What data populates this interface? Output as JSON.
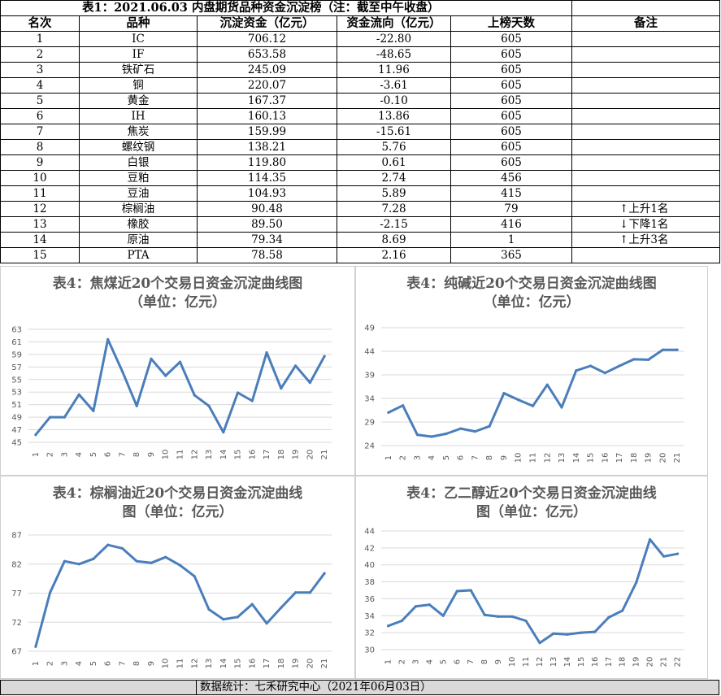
{
  "table": {
    "title": "表1：2021.06.03 内盘期货品种资金沉淀榜（注：截至中午收盘）",
    "headers": [
      "名次",
      "品种",
      "沉淀资金（亿元）",
      "资金流向（亿元）",
      "上榜天数",
      "备注"
    ],
    "rows": [
      {
        "rank": "1",
        "name": "IC",
        "fund": "706.12",
        "flow": "-22.80",
        "days": "605",
        "note": ""
      },
      {
        "rank": "2",
        "name": "IF",
        "fund": "653.58",
        "flow": "-48.65",
        "days": "605",
        "note": ""
      },
      {
        "rank": "3",
        "name": "铁矿石",
        "fund": "245.09",
        "flow": "11.96",
        "days": "605",
        "note": ""
      },
      {
        "rank": "4",
        "name": "铜",
        "fund": "220.07",
        "flow": "-3.61",
        "days": "605",
        "note": ""
      },
      {
        "rank": "5",
        "name": "黄金",
        "fund": "167.37",
        "flow": "-0.10",
        "days": "605",
        "note": ""
      },
      {
        "rank": "6",
        "name": "IH",
        "fund": "160.13",
        "flow": "13.86",
        "days": "605",
        "note": ""
      },
      {
        "rank": "7",
        "name": "焦炭",
        "fund": "159.99",
        "flow": "-15.61",
        "days": "605",
        "note": ""
      },
      {
        "rank": "8",
        "name": "螺纹钢",
        "fund": "138.21",
        "flow": "5.76",
        "days": "605",
        "note": ""
      },
      {
        "rank": "9",
        "name": "白银",
        "fund": "119.80",
        "flow": "0.61",
        "days": "605",
        "note": ""
      },
      {
        "rank": "10",
        "name": "豆粕",
        "fund": "114.35",
        "flow": "2.74",
        "days": "456",
        "note": ""
      },
      {
        "rank": "11",
        "name": "豆油",
        "fund": "104.93",
        "flow": "5.89",
        "days": "415",
        "note": ""
      },
      {
        "rank": "12",
        "name": "棕榈油",
        "fund": "90.48",
        "flow": "7.28",
        "days": "79",
        "note": "上升1名",
        "arrow": "↑"
      },
      {
        "rank": "13",
        "name": "橡胶",
        "fund": "89.50",
        "flow": "-2.15",
        "days": "416",
        "note": "下降1名",
        "arrow": "↓"
      },
      {
        "rank": "14",
        "name": "原油",
        "fund": "79.34",
        "flow": "8.69",
        "days": "1",
        "note": "上升3名",
        "arrow": "↑"
      },
      {
        "rank": "15",
        "name": "PTA",
        "fund": "78.58",
        "flow": "2.16",
        "days": "365",
        "note": ""
      }
    ]
  },
  "chart_data": [
    {
      "type": "line",
      "title": "表4：焦煤近20个交易日资金沉淀曲线图（单位：亿元）",
      "title_lines": [
        "表4：焦煤近20个交易日资金沉淀曲线图",
        "（单位：亿元）"
      ],
      "x": [
        "1",
        "2",
        "3",
        "4",
        "5",
        "6",
        "7",
        "8",
        "9",
        "10",
        "11",
        "12",
        "13",
        "14",
        "15",
        "16",
        "17",
        "18",
        "19",
        "20",
        "21"
      ],
      "values": [
        46.2,
        49.0,
        49.0,
        52.6,
        50.0,
        61.4,
        56.3,
        50.8,
        58.3,
        55.6,
        57.8,
        52.5,
        50.8,
        46.6,
        52.9,
        51.6,
        59.3,
        53.6,
        57.2,
        54.5,
        58.7
      ],
      "yticks": [
        45,
        47,
        49,
        51,
        53,
        55,
        57,
        59,
        61,
        63
      ],
      "ylim": [
        45,
        63
      ],
      "color": "#4a7ebb",
      "grid": true
    },
    {
      "type": "line",
      "title": "表4：纯碱近20个交易日资金沉淀曲线图（单位：亿元）",
      "title_lines": [
        "表4：纯碱近20个交易日资金沉淀曲线图",
        "（单位：亿元）"
      ],
      "x": [
        "1",
        "2",
        "3",
        "4",
        "5",
        "6",
        "7",
        "8",
        "9",
        "10",
        "11",
        "12",
        "13",
        "14",
        "15",
        "16",
        "17",
        "18",
        "19",
        "20",
        "21"
      ],
      "values": [
        31.0,
        32.5,
        26.3,
        25.9,
        26.5,
        27.6,
        27.0,
        28.1,
        35.1,
        33.7,
        32.4,
        36.9,
        32.1,
        39.9,
        40.9,
        39.4,
        40.9,
        42.3,
        42.2,
        44.3,
        44.3
      ],
      "yticks": [
        24,
        29,
        34,
        39,
        44,
        49
      ],
      "ylim": [
        24,
        49
      ],
      "color": "#4a7ebb",
      "grid": true
    },
    {
      "type": "line",
      "title": "表4：棕榈油近20个交易日资金沉淀曲线图（单位：亿元）",
      "title_lines": [
        "表4：棕榈油近20个交易日资金沉淀曲线",
        "图（单位：亿元）"
      ],
      "x": [
        "1",
        "2",
        "3",
        "4",
        "5",
        "6",
        "7",
        "8",
        "9",
        "10",
        "11",
        "12",
        "13",
        "14",
        "15",
        "16",
        "17",
        "18",
        "19",
        "20",
        "21"
      ],
      "values": [
        67.8,
        77.1,
        82.5,
        82.0,
        82.9,
        85.3,
        84.7,
        82.5,
        82.2,
        83.2,
        81.8,
        79.9,
        74.2,
        72.5,
        72.9,
        75.1,
        71.8,
        74.5,
        77.1,
        77.1,
        80.4
      ],
      "yticks": [
        67,
        72,
        77,
        82,
        87
      ],
      "ylim": [
        67,
        87
      ],
      "color": "#4a7ebb",
      "grid": true
    },
    {
      "type": "line",
      "title": "表4：乙二醇近20个交易日资金沉淀曲线图（单位：亿元）",
      "title_lines": [
        "表4：乙二醇近20个交易日资金沉淀曲线",
        "图（单位：亿元）"
      ],
      "x": [
        "1",
        "2",
        "3",
        "4",
        "5",
        "6",
        "7",
        "8",
        "9",
        "10",
        "11",
        "12",
        "13",
        "14",
        "15",
        "16",
        "17",
        "18",
        "19",
        "20",
        "21",
        "22"
      ],
      "values": [
        32.8,
        33.4,
        35.1,
        35.3,
        34.0,
        36.9,
        37.0,
        34.1,
        33.9,
        33.9,
        33.4,
        30.8,
        31.9,
        31.8,
        32.0,
        32.1,
        33.8,
        34.6,
        37.9,
        43.0,
        41.0,
        41.3
      ],
      "yticks": [
        30,
        32,
        34,
        36,
        38,
        40,
        42,
        44
      ],
      "ylim": [
        30,
        44
      ],
      "color": "#4a7ebb",
      "grid": true
    }
  ],
  "footer": "数据统计：七禾研究中心（2021年06月03日）"
}
